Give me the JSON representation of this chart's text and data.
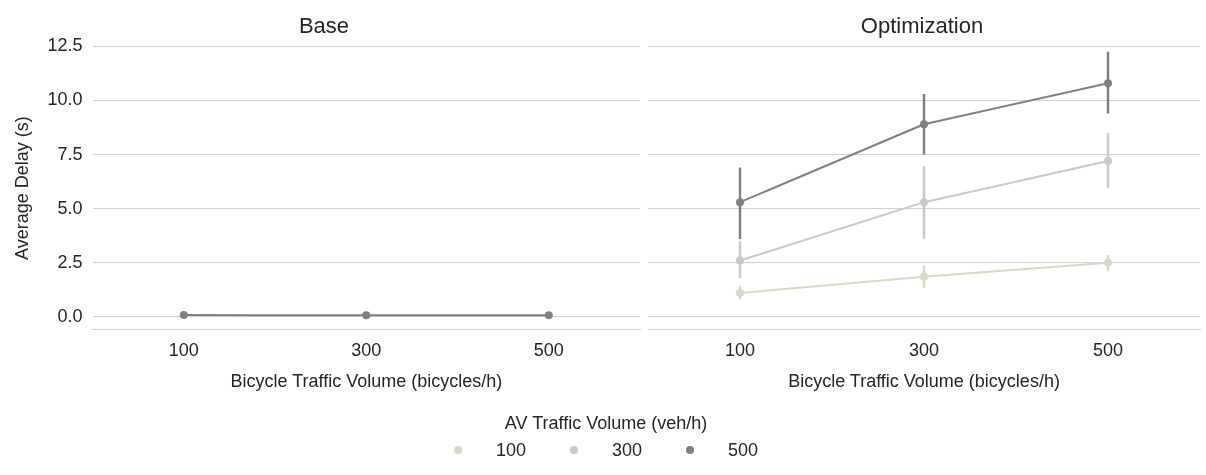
{
  "chart_data": [
    {
      "type": "line",
      "title": "Base",
      "xlabel": "Bicycle Traffic Volume (bicycles/h)",
      "ylabel": "Average Delay (s)",
      "legend_title": "AV Traffic Volume (veh/h)",
      "legend": "bottom",
      "categories": [
        "100",
        "300",
        "500"
      ],
      "marker": "circle",
      "grid": "y",
      "ylim": [
        -0.6,
        12.5
      ],
      "yticks": [
        {
          "value": 0,
          "label": "0.0"
        },
        2.5,
        {
          "value": 5,
          "label": "5.0"
        },
        7.5,
        {
          "value": 10,
          "label": "10.0"
        },
        12.5
      ],
      "series": [
        {
          "name": "100",
          "color": "#d8d8c8",
          "values": [
            null,
            null,
            null
          ]
        },
        {
          "name": "300",
          "color": "#c8c8c8",
          "values": [
            null,
            null,
            null
          ]
        },
        {
          "name": "500",
          "color": "#808080",
          "values": [
            0.08,
            0.07,
            0.07
          ]
        }
      ]
    },
    {
      "type": "line",
      "title": "Optimization",
      "xlabel": "Bicycle Traffic Volume (bicycles/h)",
      "categories": [
        "100",
        "300",
        "500"
      ],
      "marker": "circle",
      "grid": "y",
      "tick_labels": "x",
      "ylim": [
        -0.6,
        12.5
      ],
      "yticks": [
        0,
        2.5,
        5,
        7.5,
        10,
        12.5
      ],
      "series": [
        {
          "color": "#d8d8c8",
          "values": [
            1.1,
            1.85,
            2.5
          ],
          "errors": [
            [
              0.8,
              1.43
            ],
            [
              1.34,
              2.37
            ],
            [
              2.1,
              2.86
            ]
          ]
        },
        {
          "color": "#c8c8c8",
          "values": [
            2.6,
            5.3,
            7.2
          ],
          "errors": [
            [
              1.8,
              3.5
            ],
            [
              3.6,
              6.95
            ],
            [
              5.95,
              8.5
            ]
          ]
        },
        {
          "color": "#808080",
          "values": [
            5.3,
            8.9,
            10.8
          ],
          "errors": [
            [
              3.6,
              6.9
            ],
            [
              7.5,
              10.3
            ],
            [
              9.4,
              12.25
            ]
          ]
        }
      ]
    }
  ]
}
